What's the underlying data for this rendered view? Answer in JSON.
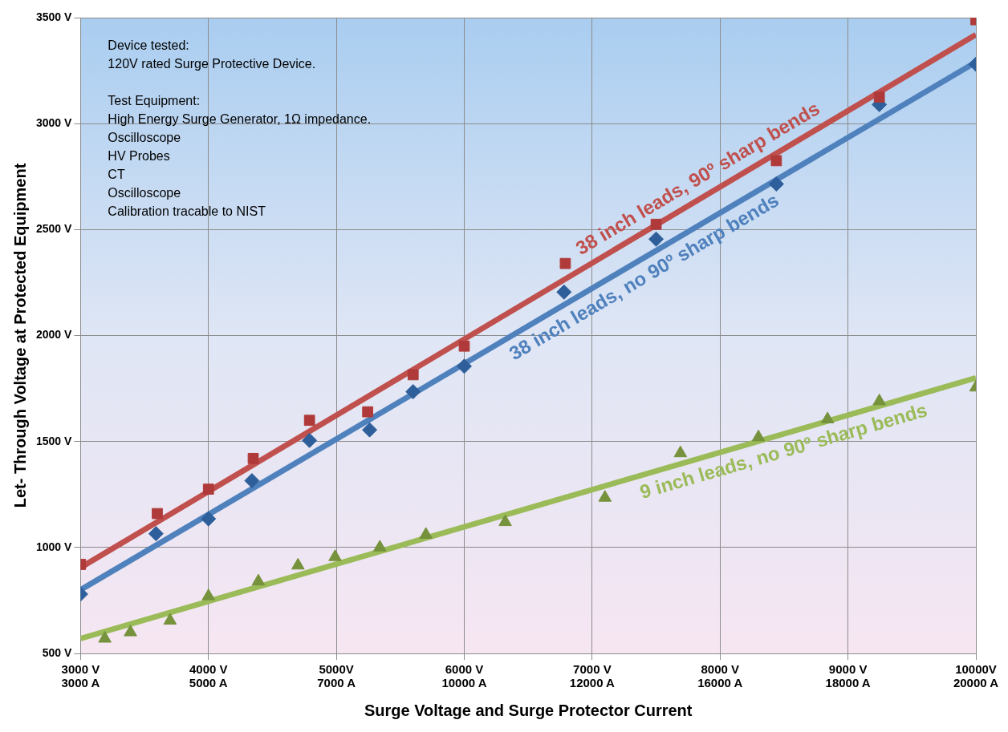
{
  "chart_data": {
    "type": "scatter",
    "xlabel": "Surge Voltage and Surge Protector Current",
    "ylabel": "Let- Through Voltage at Protected Equipment",
    "xlim": [
      3000,
      10000
    ],
    "xticks": [
      {
        "value": 3000,
        "label": "3000 V"
      },
      {
        "value": 4000,
        "label": "4000 V"
      },
      {
        "value": 5000,
        "label": "5000V"
      },
      {
        "value": 6000,
        "label": "6000 V"
      },
      {
        "value": 7000,
        "label": "7000 V"
      },
      {
        "value": 8000,
        "label": "8000 V"
      },
      {
        "value": 9000,
        "label": "9000 V"
      },
      {
        "value": 10000,
        "label": "10000V"
      }
    ],
    "ylim": [
      500,
      3500
    ],
    "yticks": [
      {
        "value": 500,
        "label": "500 V"
      },
      {
        "value": 1000,
        "label": "1000 V"
      },
      {
        "value": 1500,
        "label": "1500 V"
      },
      {
        "value": 2000,
        "label": "2000 V"
      },
      {
        "value": 2500,
        "label": "2500 V"
      },
      {
        "value": 3000,
        "label": "3000 V"
      },
      {
        "value": 3500,
        "label": "3500 V"
      }
    ],
    "grid": true,
    "legend": false,
    "annotations": [
      "Device tested:\n120V rated Surge Protective Device.\n\nTest Equipment:\nHigh Energy Surge Generator, 1Ω impedance.\nOscilloscope\nHV Probes\nCT\nOscilloscope\nCalibration tracable to NIST",
      "3000 A",
      "5000 A",
      "7000 A",
      "10000 A",
      "12000 A",
      "16000 A",
      "18000 A",
      "20000 A"
    ],
    "series": [
      {
        "type": "scatter",
        "marker": "square",
        "color": "#b03a3a",
        "x": [
          3000,
          3600,
          4000,
          4350,
          4790,
          5245,
          5600,
          6000,
          6790,
          7500,
          8440,
          9245,
          10000
        ],
        "values": [
          920,
          1160,
          1275,
          1420,
          1600,
          1640,
          1815,
          1950,
          2340,
          2525,
          2825,
          3125,
          3490
        ]
      },
      {
        "type": "scatter",
        "marker": "diamond",
        "color": "#2e5f9a",
        "x": [
          3000,
          3590,
          4000,
          4340,
          4790,
          5260,
          5600,
          6000,
          6780,
          7500,
          8440,
          9245,
          10000
        ],
        "values": [
          780,
          1065,
          1135,
          1315,
          1505,
          1555,
          1735,
          1855,
          2205,
          2455,
          2715,
          3090,
          3280
        ]
      },
      {
        "type": "scatter",
        "marker": "triangle",
        "color": "#76923c",
        "x": [
          3190,
          3390,
          3700,
          4000,
          4390,
          4700,
          4990,
          5340,
          5700,
          6320,
          7100,
          7690,
          8300,
          8840,
          9245,
          10000
        ],
        "values": [
          570,
          600,
          655,
          770,
          840,
          915,
          955,
          1000,
          1060,
          1120,
          1235,
          1445,
          1520,
          1605,
          1690,
          1755
        ]
      },
      {
        "type": "line",
        "marker": "none",
        "name": "38 inch leads, 90º sharp bends",
        "color": "#c0504d",
        "x": [
          3000,
          10000
        ],
        "values": [
          905,
          3420
        ]
      },
      {
        "type": "line",
        "marker": "none",
        "name": "38 inch leads, no 90º sharp bends",
        "color": "#4f81bd",
        "x": [
          3000,
          10000
        ],
        "values": [
          800,
          3290
        ]
      },
      {
        "type": "line",
        "marker": "none",
        "name": "9 inch leads, no 90º sharp bends",
        "color": "#9bbb59",
        "x": [
          3000,
          10000
        ],
        "values": [
          570,
          1800
        ]
      }
    ]
  }
}
